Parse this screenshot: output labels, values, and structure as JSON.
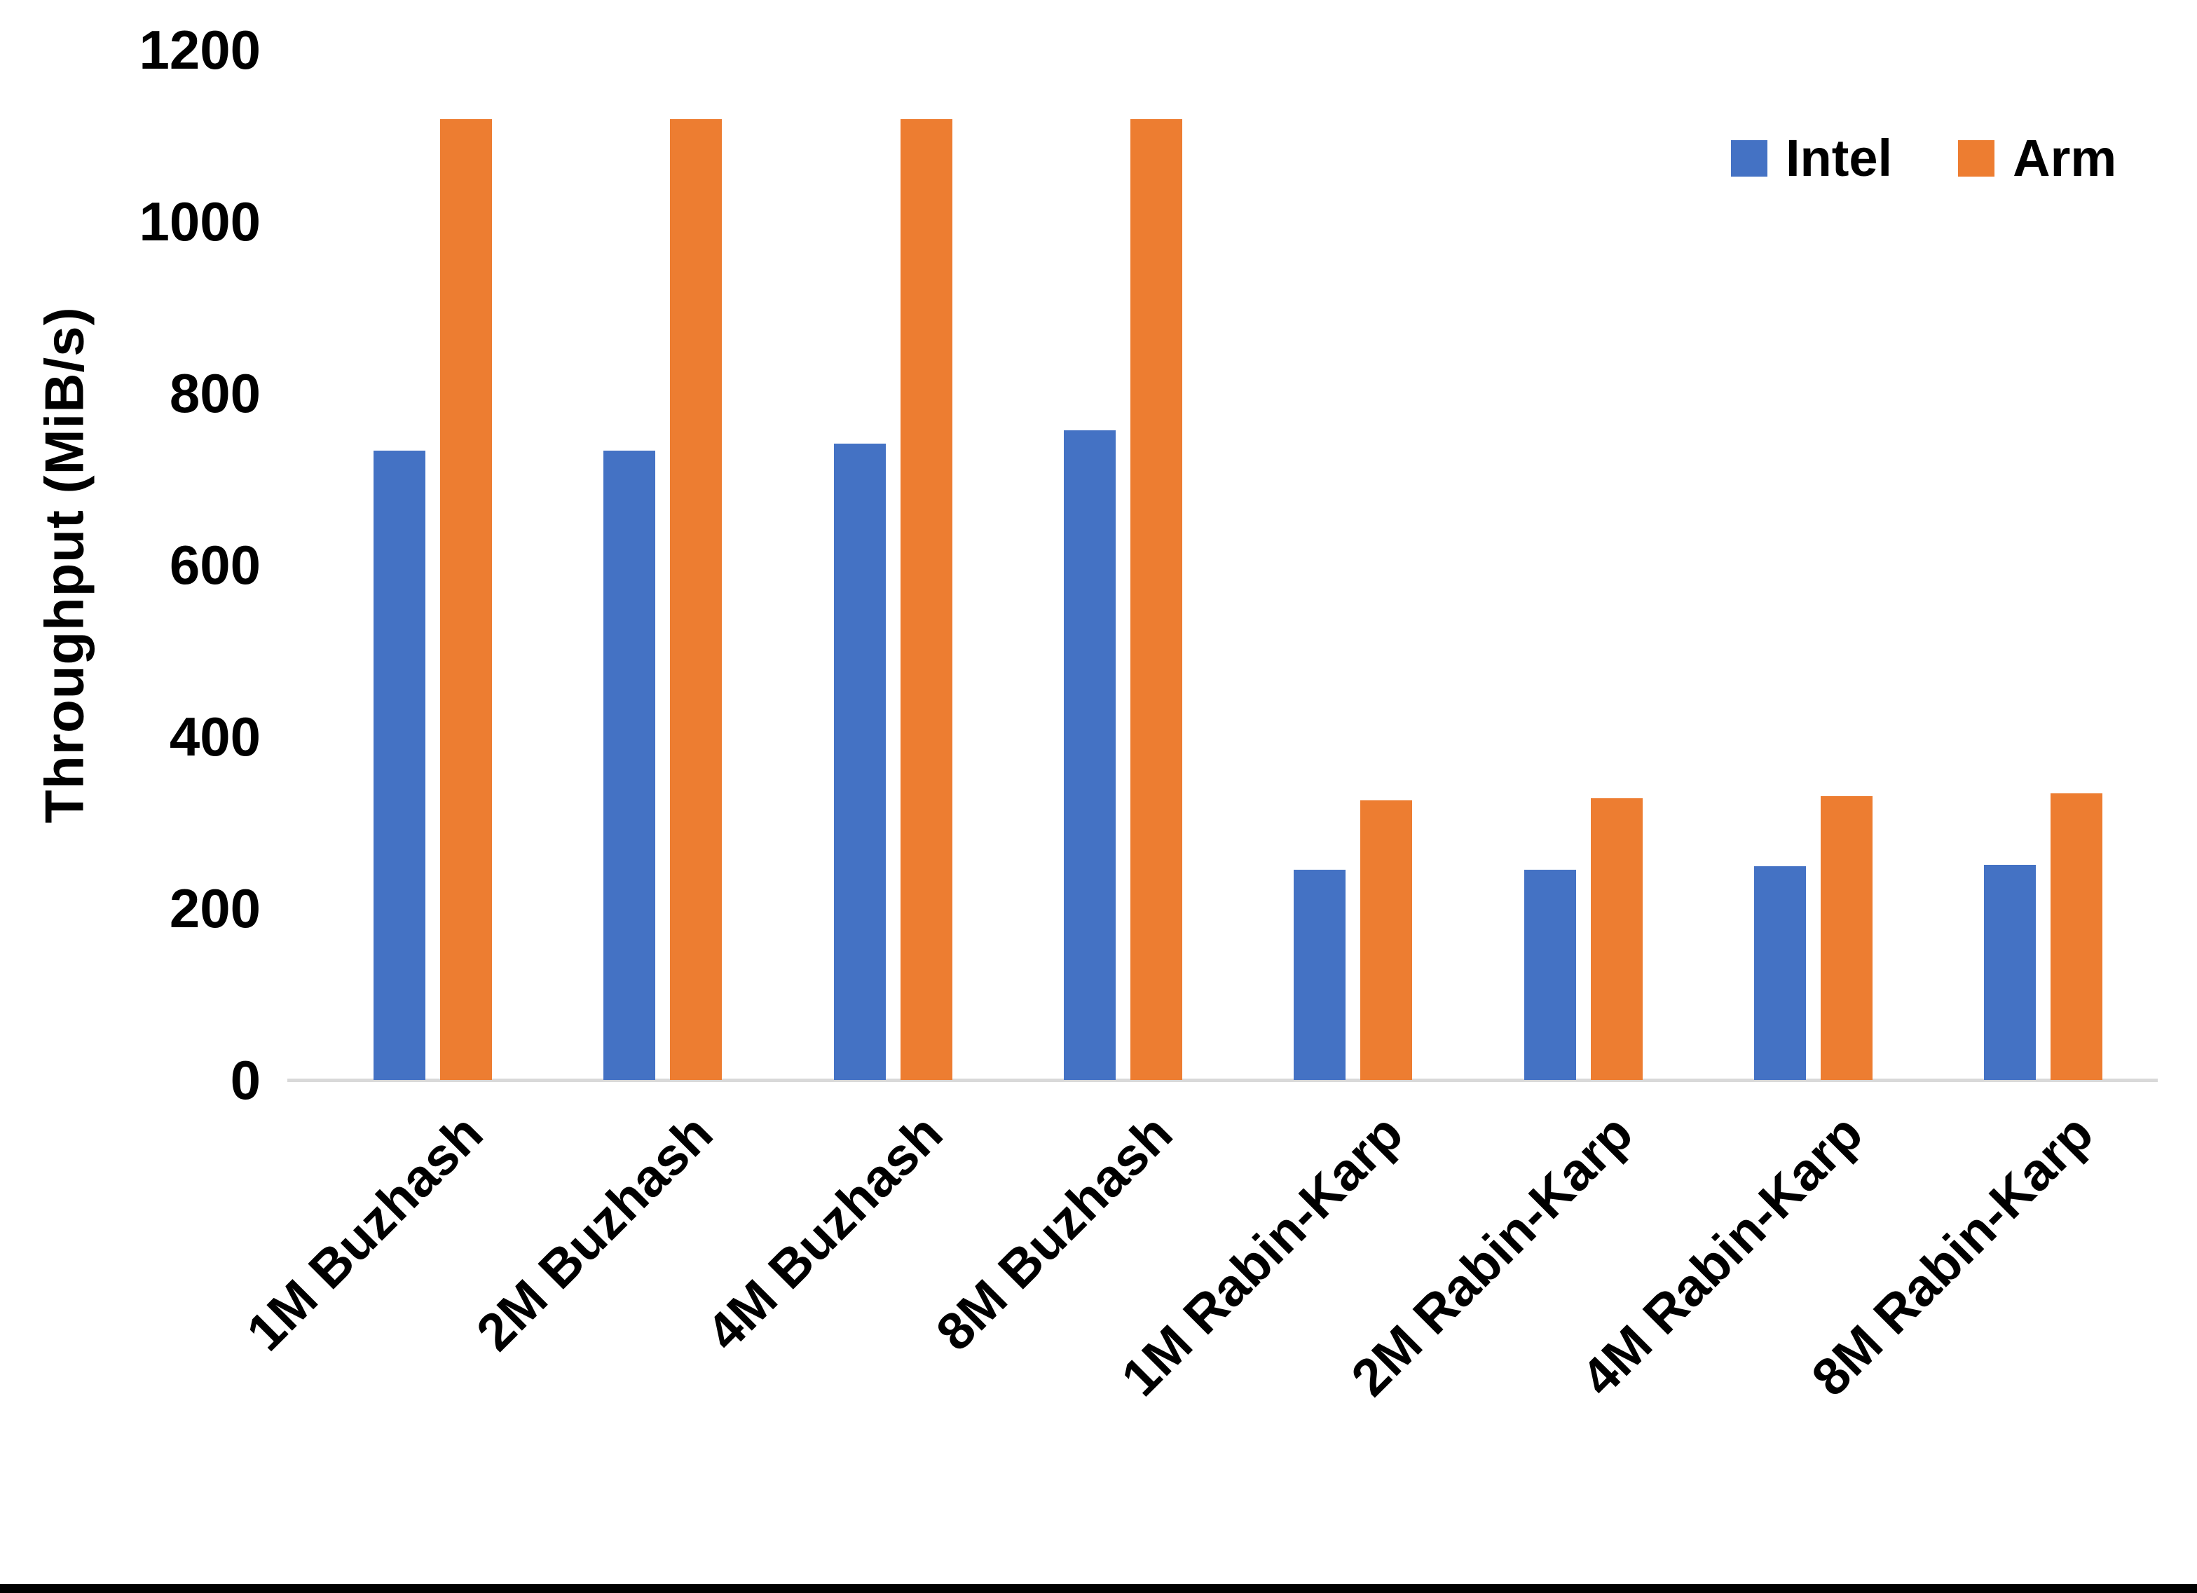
{
  "chart_data": {
    "type": "bar",
    "title": "",
    "ylabel": "Throughput (MiB/s)",
    "xlabel": "",
    "ylim": [
      0,
      1200
    ],
    "yticks": [
      0,
      200,
      400,
      600,
      800,
      1000,
      1200
    ],
    "grid": false,
    "legend_position": "top-right",
    "categories": [
      "1M Buzhash",
      "2M Buzhash",
      "4M Buzhash",
      "8M Buzhash",
      "1M Rabin-Karp",
      "2M Rabin-Karp",
      "4M Rabin-Karp",
      "8M Rabin-Karp"
    ],
    "series": [
      {
        "name": "Intel",
        "color": "#4472C4",
        "values": [
          733,
          733,
          741,
          757,
          245,
          245,
          249,
          251
        ]
      },
      {
        "name": "Arm",
        "color": "#ED7D31",
        "values": [
          1119,
          1119,
          1119,
          1119,
          326,
          328,
          331,
          334
        ]
      }
    ],
    "axis_line_color": "#D9D9D9",
    "text_color": "#000000"
  }
}
